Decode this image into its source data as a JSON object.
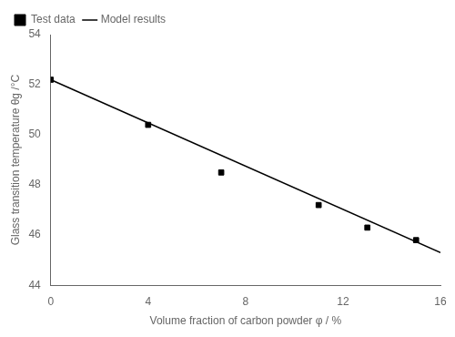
{
  "chart_data": {
    "type": "scatter",
    "xlabel": "Volume fraction of carbon powder φ / %",
    "ylabel": "Glass transition temperature θg /°C",
    "series": [
      {
        "name": "Test data",
        "type": "scatter",
        "color": "black",
        "marker": "square",
        "x": [
          0,
          4,
          7,
          11,
          13,
          15
        ],
        "values": [
          52.2,
          50.4,
          48.5,
          47.2,
          46.3,
          45.8
        ]
      },
      {
        "name": "Model results",
        "type": "line",
        "color": "black",
        "line_style": "solid",
        "x": [
          0,
          16
        ],
        "values": [
          52.2,
          45.3
        ]
      }
    ],
    "xlim": [
      0,
      16
    ],
    "ylim": [
      44,
      54
    ],
    "xticks": [
      0,
      4,
      8,
      12,
      16
    ],
    "yticks": [
      44,
      46,
      48,
      50,
      52,
      54
    ],
    "grid": false,
    "legend": "upper left"
  }
}
